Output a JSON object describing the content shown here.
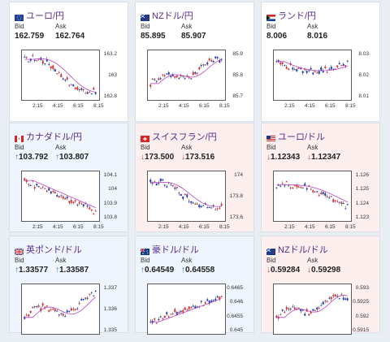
{
  "cards": [
    {
      "id": "eurjpy",
      "title": "ユーロ/円",
      "flag": "eu",
      "trend": "none",
      "bid_label": "Bid",
      "ask_label": "Ask",
      "bid": "162.759",
      "ask": "162.764",
      "bid_arrow": "",
      "ask_arrow": "",
      "yticks": [
        "163.2",
        "163",
        "162.8"
      ],
      "xticks": [
        "2:15",
        "4:15",
        "6:15",
        "8:15"
      ]
    },
    {
      "id": "nzdjpy",
      "title": "NZドル/円",
      "flag": "nz",
      "trend": "none",
      "bid_label": "Bid",
      "ask_label": "Ask",
      "bid": "85.895",
      "ask": "85.907",
      "bid_arrow": "",
      "ask_arrow": "",
      "yticks": [
        "85.9",
        "85.8",
        "85.7"
      ],
      "xticks": [
        "2:15",
        "4:15",
        "6:15",
        "8:15"
      ]
    },
    {
      "id": "zarjpy",
      "title": "ランド/円",
      "flag": "za",
      "trend": "none",
      "bid_label": "Bid",
      "ask_label": "Ask",
      "bid": "8.006",
      "ask": "8.016",
      "bid_arrow": "",
      "ask_arrow": "",
      "yticks": [
        "8.03",
        "8.02",
        "8.01"
      ],
      "xticks": [
        "2:15",
        "4:15",
        "6:15",
        "8:15"
      ]
    },
    {
      "id": "cadjpy",
      "title": "カナダドル/円",
      "flag": "ca",
      "trend": "up",
      "bid_label": "Bid",
      "ask_label": "Ask",
      "bid": "103.792",
      "ask": "103.807",
      "bid_arrow": "↑",
      "ask_arrow": "↑",
      "yticks": [
        "104.1",
        "104",
        "103.9",
        "103.8"
      ],
      "xticks": [
        "2:15",
        "4:15",
        "6:15",
        "8:15"
      ]
    },
    {
      "id": "chfjpy",
      "title": "スイスフラン/円",
      "flag": "ch",
      "trend": "down",
      "bid_label": "Bid",
      "ask_label": "Ask",
      "bid": "173.500",
      "ask": "173.516",
      "bid_arrow": "↓",
      "ask_arrow": "↓",
      "yticks": [
        "174",
        "173.8",
        "173.6"
      ],
      "xticks": [
        "2:15",
        "4:15",
        "6:15",
        "8:15"
      ]
    },
    {
      "id": "eurusd",
      "title": "ユーロ/ドル",
      "flag": "us",
      "trend": "down",
      "bid_label": "Bid",
      "ask_label": "Ask",
      "bid": "1.12343",
      "ask": "1.12347",
      "bid_arrow": "↓",
      "ask_arrow": "↓",
      "yticks": [
        "1.126",
        "1.125",
        "1.124",
        "1.123"
      ],
      "xticks": [
        "2:15",
        "4:15",
        "6:15",
        "8:15"
      ]
    },
    {
      "id": "gbpusd",
      "title": "英ポンド/ドル",
      "flag": "gb",
      "trend": "up",
      "bid_label": "Bid",
      "ask_label": "Ask",
      "bid": "1.33577",
      "ask": "1.33587",
      "bid_arrow": "↑",
      "ask_arrow": "↑",
      "yticks": [
        "1.337",
        "1.336",
        "1.335"
      ],
      "xticks": []
    },
    {
      "id": "audusd",
      "title": "豪ドル/ドル",
      "flag": "au",
      "trend": "up",
      "bid_label": "Bid",
      "ask_label": "Ask",
      "bid": "0.64549",
      "ask": "0.64558",
      "bid_arrow": "↑",
      "ask_arrow": "↑",
      "yticks": [
        "0.6465",
        "0.646",
        "0.6455",
        "0.645"
      ],
      "xticks": []
    },
    {
      "id": "nzdusd",
      "title": "NZドル/ドル",
      "flag": "nz",
      "trend": "down",
      "bid_label": "Bid",
      "ask_label": "Ask",
      "bid": "0.59284",
      "ask": "0.59298",
      "bid_arrow": "↓",
      "ask_arrow": "↓",
      "yticks": [
        "0.593",
        "0.5925",
        "0.592",
        "0.5915"
      ],
      "xticks": []
    }
  ],
  "colors": {
    "up_bg": "#eef5fc",
    "down_bg": "#fcefee",
    "title": "#5a2c8a",
    "up_arrow": "#2a7ad6",
    "down_arrow": "#d43b2f",
    "candle_up": "#e03030",
    "candle_down": "#2040c0",
    "ma": "#c040c0"
  }
}
